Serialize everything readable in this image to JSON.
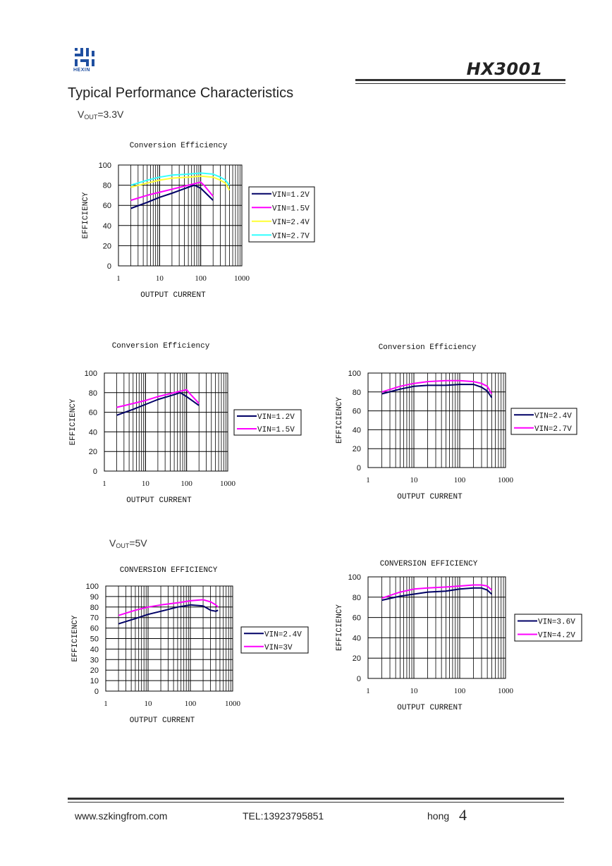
{
  "header": {
    "logo_text": "HEXIN",
    "doc_title": "HX3001"
  },
  "section": {
    "heading": "Typical Performance Characteristics",
    "condition_33_main": "V",
    "condition_33_sub": "OUT",
    "condition_33_tail": "=3.3V",
    "condition_5_main": "V",
    "condition_5_sub": "OUT",
    "condition_5_tail": "=5V"
  },
  "chart_data": [
    {
      "type": "line",
      "title": "Conversion Efficiency",
      "xlabel": "OUTPUT CURRENT",
      "ylabel": "EFFICIENCY",
      "x_scale": "log",
      "xlim": [
        1,
        1000
      ],
      "ylim": [
        0,
        100
      ],
      "x_ticks": [
        "1",
        "10",
        "100",
        "1000"
      ],
      "y_ticks": [
        "100",
        "80",
        "60",
        "40",
        "20",
        "0"
      ],
      "legend_position": "right",
      "series": [
        {
          "name": "VIN=1.2V",
          "color": "#000066",
          "x": [
            2,
            5,
            10,
            20,
            50,
            70,
            100,
            200
          ],
          "y": [
            57,
            63,
            68,
            72,
            78,
            80,
            77,
            65
          ]
        },
        {
          "name": "VIN=1.5V",
          "color": "#ff00ff",
          "x": [
            2,
            5,
            10,
            20,
            50,
            100,
            120,
            200
          ],
          "y": [
            65,
            70,
            73,
            76,
            80,
            83,
            80,
            69
          ]
        },
        {
          "name": "VIN=2.4V",
          "color": "#ffff33",
          "x": [
            2,
            5,
            10,
            20,
            50,
            100,
            200,
            300,
            400,
            500
          ],
          "y": [
            78,
            82,
            85,
            87,
            88,
            89,
            88,
            85,
            82,
            75
          ]
        },
        {
          "name": "VIN=2.7V",
          "color": "#33ffff",
          "x": [
            2,
            5,
            10,
            20,
            50,
            100,
            200,
            300,
            400,
            500
          ],
          "y": [
            80,
            85,
            88,
            90,
            91,
            92,
            91,
            88,
            85,
            80
          ]
        }
      ]
    },
    {
      "type": "line",
      "title": "Conversion Efficiency",
      "xlabel": "OUTPUT CURRENT",
      "ylabel": "EFFICIENCY",
      "x_scale": "log",
      "xlim": [
        1,
        1000
      ],
      "ylim": [
        0,
        100
      ],
      "x_ticks": [
        "1",
        "10",
        "100",
        "1000"
      ],
      "y_ticks": [
        "100",
        "80",
        "60",
        "40",
        "20",
        "0"
      ],
      "legend_position": "right",
      "series": [
        {
          "name": "VIN=1.2V",
          "color": "#000066",
          "x": [
            2,
            5,
            10,
            20,
            50,
            70,
            100,
            200
          ],
          "y": [
            57,
            63,
            68,
            73,
            78,
            80,
            76,
            67
          ]
        },
        {
          "name": "VIN=1.5V",
          "color": "#ff00ff",
          "x": [
            2,
            5,
            10,
            20,
            50,
            100,
            120,
            200
          ],
          "y": [
            65,
            69,
            72,
            76,
            80,
            83,
            79,
            69
          ]
        }
      ]
    },
    {
      "type": "line",
      "title": "Conversion Efficiency",
      "xlabel": "OUTPUT CURRENT",
      "ylabel": "EFFICIENCY",
      "x_scale": "log",
      "xlim": [
        1,
        1000
      ],
      "ylim": [
        0,
        100
      ],
      "x_ticks": [
        "1",
        "10",
        "100",
        "1000"
      ],
      "y_ticks": [
        "100",
        "80",
        "60",
        "40",
        "20",
        "0"
      ],
      "legend_position": "right",
      "series": [
        {
          "name": "VIN=2.4V",
          "color": "#000066",
          "x": [
            2,
            5,
            10,
            20,
            50,
            100,
            200,
            300,
            400,
            500
          ],
          "y": [
            78,
            83,
            86,
            87,
            87,
            88,
            88,
            85,
            81,
            74
          ]
        },
        {
          "name": "VIN=2.7V",
          "color": "#ff00ff",
          "x": [
            2,
            5,
            10,
            20,
            50,
            100,
            200,
            300,
            400,
            500
          ],
          "y": [
            80,
            86,
            89,
            91,
            92,
            92,
            91,
            89,
            86,
            78
          ]
        }
      ]
    },
    {
      "type": "line",
      "title": "CONVERSION EFFICIENCY",
      "xlabel": "OUTPUT CURRENT",
      "ylabel": "EFFICIENCY",
      "x_scale": "log",
      "xlim": [
        1,
        1000
      ],
      "ylim": [
        0,
        100
      ],
      "x_ticks": [
        "1",
        "10",
        "100",
        "1000"
      ],
      "y_ticks": [
        "100",
        "90",
        "80",
        "70",
        "60",
        "50",
        "40",
        "30",
        "20",
        "10",
        "0"
      ],
      "legend_position": "right",
      "series": [
        {
          "name": "VIN=2.4V",
          "color": "#000066",
          "x": [
            2,
            5,
            10,
            20,
            50,
            100,
            200,
            300,
            400,
            450
          ],
          "y": [
            64,
            69,
            73,
            76,
            80,
            82,
            81,
            77,
            76,
            77
          ]
        },
        {
          "name": "VIN=3V",
          "color": "#ff00ff",
          "x": [
            2,
            5,
            10,
            20,
            50,
            100,
            200,
            300,
            400,
            450
          ],
          "y": [
            72,
            77,
            80,
            82,
            84,
            86,
            87,
            85,
            82,
            80
          ]
        }
      ]
    },
    {
      "type": "line",
      "title": "CONVERSION EFFICIENCY",
      "xlabel": "OUTPUT CURRENT",
      "ylabel": "EFFICIENCY",
      "x_scale": "log",
      "xlim": [
        1,
        1000
      ],
      "ylim": [
        0,
        100
      ],
      "x_ticks": [
        "1",
        "10",
        "100",
        "1000"
      ],
      "y_ticks": [
        "100",
        "80",
        "60",
        "40",
        "20",
        "0"
      ],
      "legend_position": "right",
      "series": [
        {
          "name": "VIN=3.6V",
          "color": "#000066",
          "x": [
            2,
            5,
            10,
            20,
            50,
            100,
            200,
            300,
            400,
            500
          ],
          "y": [
            77,
            81,
            83,
            85,
            86,
            88,
            89,
            89,
            87,
            83
          ]
        },
        {
          "name": "VIN=4.2V",
          "color": "#ff00ff",
          "x": [
            2,
            5,
            10,
            20,
            50,
            100,
            200,
            300,
            400,
            500
          ],
          "y": [
            79,
            85,
            88,
            89,
            90,
            91,
            92,
            92,
            91,
            87
          ]
        }
      ]
    }
  ],
  "footer": {
    "url": "www.szkingfrom.com",
    "tel": "TEL:13923795851",
    "author": "hong",
    "page": "4"
  }
}
